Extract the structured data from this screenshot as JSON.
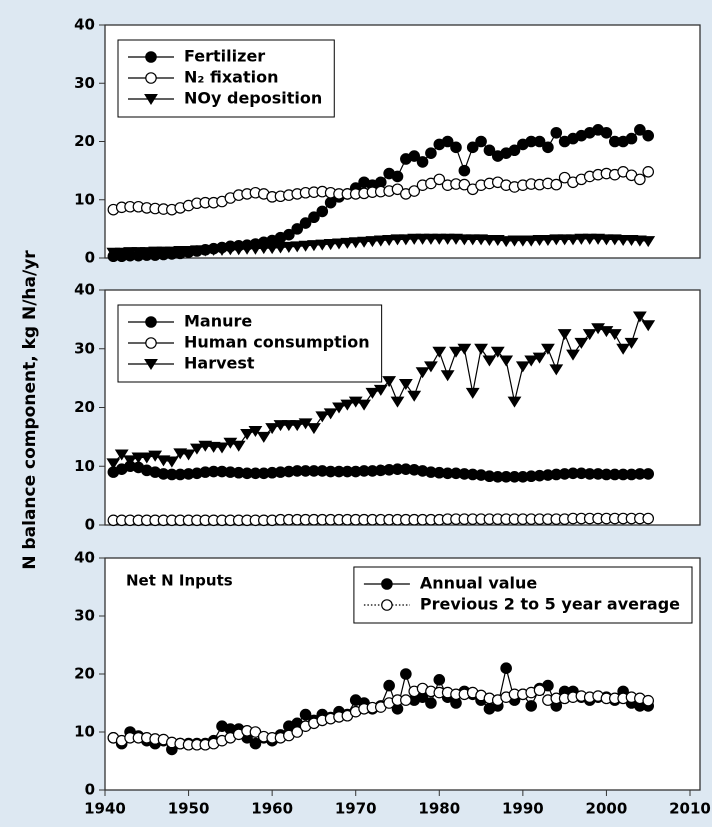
{
  "chart_data": [
    {
      "type": "line",
      "xlim": [
        1940,
        2010
      ],
      "ylim": [
        0,
        40
      ],
      "yticks": [
        0,
        10,
        20,
        30,
        40
      ],
      "legend": "upper left",
      "x": [
        1941,
        1942,
        1943,
        1944,
        1945,
        1946,
        1947,
        1948,
        1949,
        1950,
        1951,
        1952,
        1953,
        1954,
        1955,
        1956,
        1957,
        1958,
        1959,
        1960,
        1961,
        1962,
        1963,
        1964,
        1965,
        1966,
        1967,
        1968,
        1969,
        1970,
        1971,
        1972,
        1973,
        1974,
        1975,
        1976,
        1977,
        1978,
        1979,
        1980,
        1981,
        1982,
        1983,
        1984,
        1985,
        1986,
        1987,
        1988,
        1989,
        1990,
        1991,
        1992,
        1993,
        1994,
        1995,
        1996,
        1997,
        1998,
        1999,
        2000,
        2001,
        2002,
        2003,
        2004,
        2005
      ],
      "series": [
        {
          "name": "Fertilizer",
          "color": "#000000",
          "marker": "filled-circle",
          "line": "solid",
          "values": [
            0.3,
            0.3,
            0.4,
            0.4,
            0.5,
            0.5,
            0.6,
            0.7,
            0.8,
            1.0,
            1.2,
            1.4,
            1.6,
            1.8,
            2.0,
            2.1,
            2.2,
            2.4,
            2.7,
            3.0,
            3.5,
            4.0,
            5.0,
            6.0,
            7.0,
            8.0,
            9.5,
            10.5,
            11.0,
            12.0,
            13.0,
            12.5,
            13.0,
            14.5,
            14.0,
            17.0,
            17.5,
            16.5,
            18.0,
            19.5,
            20.0,
            19.0,
            15.0,
            19.0,
            20.0,
            18.5,
            17.5,
            18.0,
            18.5,
            19.5,
            20.0,
            20.0,
            19.0,
            21.5,
            20.0,
            20.5,
            21.0,
            21.5,
            22.0,
            21.5,
            20.0,
            20.0,
            20.5,
            22.0,
            21.0
          ]
        },
        {
          "name": "N₂ fixation",
          "color": "#000000",
          "marker": "open-circle",
          "line": "solid",
          "values": [
            8.3,
            8.7,
            8.8,
            8.8,
            8.6,
            8.5,
            8.4,
            8.3,
            8.6,
            9.0,
            9.4,
            9.5,
            9.5,
            9.7,
            10.3,
            10.8,
            11.0,
            11.2,
            11.0,
            10.5,
            10.6,
            10.8,
            11.0,
            11.2,
            11.3,
            11.4,
            11.2,
            11.0,
            11.0,
            11.0,
            11.1,
            11.3,
            11.4,
            11.5,
            11.8,
            11.0,
            11.5,
            12.5,
            12.8,
            13.5,
            12.5,
            12.7,
            12.6,
            11.8,
            12.5,
            12.8,
            13.0,
            12.5,
            12.2,
            12.5,
            12.7,
            12.6,
            12.8,
            12.6,
            13.8,
            13.0,
            13.5,
            14.0,
            14.3,
            14.5,
            14.3,
            14.8,
            14.2,
            13.5,
            14.8
          ]
        },
        {
          "name": "NOy deposition",
          "color": "#000000",
          "marker": "triangle-down",
          "line": "solid",
          "values": [
            0.9,
            0.9,
            1.0,
            1.0,
            1.0,
            1.1,
            1.1,
            1.1,
            1.2,
            1.2,
            1.3,
            1.3,
            1.4,
            1.4,
            1.5,
            1.5,
            1.6,
            1.6,
            1.7,
            1.7,
            1.8,
            1.9,
            2.0,
            2.1,
            2.2,
            2.3,
            2.4,
            2.5,
            2.6,
            2.7,
            2.8,
            2.9,
            3.0,
            3.1,
            3.2,
            3.2,
            3.3,
            3.3,
            3.3,
            3.3,
            3.3,
            3.3,
            3.2,
            3.2,
            3.2,
            3.1,
            3.1,
            2.9,
            3.0,
            3.0,
            3.0,
            3.1,
            3.1,
            3.2,
            3.2,
            3.2,
            3.3,
            3.3,
            3.3,
            3.2,
            3.2,
            3.1,
            3.1,
            3.0,
            2.9
          ]
        }
      ]
    },
    {
      "type": "line",
      "xlim": [
        1940,
        2010
      ],
      "ylim": [
        0,
        40
      ],
      "yticks": [
        0,
        10,
        20,
        30,
        40
      ],
      "legend": "upper left",
      "ylabel": "N balance component, kg N/ha/yr",
      "x": [
        1941,
        1942,
        1943,
        1944,
        1945,
        1946,
        1947,
        1948,
        1949,
        1950,
        1951,
        1952,
        1953,
        1954,
        1955,
        1956,
        1957,
        1958,
        1959,
        1960,
        1961,
        1962,
        1963,
        1964,
        1965,
        1966,
        1967,
        1968,
        1969,
        1970,
        1971,
        1972,
        1973,
        1974,
        1975,
        1976,
        1977,
        1978,
        1979,
        1980,
        1981,
        1982,
        1983,
        1984,
        1985,
        1986,
        1987,
        1988,
        1989,
        1990,
        1991,
        1992,
        1993,
        1994,
        1995,
        1996,
        1997,
        1998,
        1999,
        2000,
        2001,
        2002,
        2003,
        2004,
        2005
      ],
      "series": [
        {
          "name": "Manure",
          "color": "#000000",
          "marker": "filled-circle",
          "line": "solid",
          "values": [
            9.0,
            9.5,
            10.0,
            9.8,
            9.3,
            9.0,
            8.7,
            8.6,
            8.6,
            8.7,
            8.8,
            9.0,
            9.1,
            9.1,
            9.0,
            8.9,
            8.8,
            8.8,
            8.8,
            8.9,
            9.0,
            9.1,
            9.2,
            9.2,
            9.2,
            9.2,
            9.1,
            9.1,
            9.1,
            9.1,
            9.2,
            9.2,
            9.3,
            9.4,
            9.5,
            9.5,
            9.4,
            9.2,
            9.0,
            8.9,
            8.8,
            8.8,
            8.7,
            8.6,
            8.5,
            8.3,
            8.2,
            8.2,
            8.2,
            8.2,
            8.3,
            8.4,
            8.5,
            8.6,
            8.7,
            8.8,
            8.8,
            8.7,
            8.7,
            8.6,
            8.6,
            8.6,
            8.6,
            8.7,
            8.7
          ]
        },
        {
          "name": "Human consumption",
          "color": "#000000",
          "marker": "open-circle",
          "line": "solid",
          "values": [
            0.8,
            0.8,
            0.8,
            0.8,
            0.8,
            0.8,
            0.8,
            0.8,
            0.8,
            0.8,
            0.8,
            0.8,
            0.8,
            0.8,
            0.8,
            0.8,
            0.8,
            0.8,
            0.8,
            0.8,
            0.9,
            0.9,
            0.9,
            0.9,
            0.9,
            0.9,
            0.9,
            0.9,
            0.9,
            0.9,
            0.9,
            0.9,
            0.9,
            0.9,
            0.9,
            0.9,
            0.9,
            0.9,
            0.9,
            0.9,
            1.0,
            1.0,
            1.0,
            1.0,
            1.0,
            1.0,
            1.0,
            1.0,
            1.0,
            1.0,
            1.0,
            1.0,
            1.0,
            1.0,
            1.0,
            1.1,
            1.1,
            1.1,
            1.1,
            1.1,
            1.1,
            1.1,
            1.1,
            1.1,
            1.1
          ]
        },
        {
          "name": "Harvest",
          "color": "#000000",
          "marker": "triangle-down",
          "line": "solid",
          "values": [
            10.5,
            12.0,
            11.0,
            11.5,
            11.5,
            11.8,
            11.0,
            10.8,
            12.2,
            12.0,
            13.0,
            13.5,
            13.3,
            13.2,
            14.0,
            13.5,
            15.5,
            16.0,
            15.0,
            16.5,
            17.0,
            17.0,
            17.0,
            17.3,
            16.5,
            18.5,
            19.0,
            20.0,
            20.5,
            21.0,
            20.5,
            22.5,
            23.0,
            24.5,
            21.0,
            24.0,
            22.0,
            26.0,
            27.0,
            29.5,
            25.5,
            29.5,
            30.0,
            22.5,
            30.0,
            28.0,
            29.5,
            28.0,
            21.0,
            27.0,
            28.0,
            28.5,
            30.0,
            26.5,
            32.5,
            29.0,
            31.0,
            32.5,
            33.5,
            33.0,
            32.5,
            30.0,
            31.0,
            35.5,
            34.0
          ]
        }
      ]
    },
    {
      "type": "line",
      "xlim": [
        1940,
        2010
      ],
      "ylim": [
        0,
        40
      ],
      "yticks": [
        0,
        10,
        20,
        30,
        40
      ],
      "xticks": [
        1940,
        1950,
        1960,
        1970,
        1980,
        1990,
        2000,
        2010
      ],
      "legend": "upper right",
      "annotation": "Net N Inputs",
      "x": [
        1941,
        1942,
        1943,
        1944,
        1945,
        1946,
        1947,
        1948,
        1949,
        1950,
        1951,
        1952,
        1953,
        1954,
        1955,
        1956,
        1957,
        1958,
        1959,
        1960,
        1961,
        1962,
        1963,
        1964,
        1965,
        1966,
        1967,
        1968,
        1969,
        1970,
        1971,
        1972,
        1973,
        1974,
        1975,
        1976,
        1977,
        1978,
        1979,
        1980,
        1981,
        1982,
        1983,
        1984,
        1985,
        1986,
        1987,
        1988,
        1989,
        1990,
        1991,
        1992,
        1993,
        1994,
        1995,
        1996,
        1997,
        1998,
        1999,
        2000,
        2001,
        2002,
        2003,
        2004,
        2005
      ],
      "series": [
        {
          "name": "Annual value",
          "color": "#000000",
          "marker": "filled-circle",
          "line": "solid",
          "values": [
            9.0,
            8.0,
            10.0,
            9.3,
            8.5,
            8.0,
            8.5,
            7.0,
            8.0,
            8.0,
            8.0,
            8.0,
            8.5,
            11.0,
            10.5,
            10.5,
            9.0,
            8.0,
            9.0,
            8.5,
            9.5,
            11.0,
            11.5,
            13.0,
            12.0,
            13.0,
            12.5,
            13.5,
            13.0,
            15.5,
            15.0,
            14.0,
            14.5,
            18.0,
            14.0,
            20.0,
            15.5,
            16.0,
            15.0,
            19.0,
            16.0,
            15.0,
            17.0,
            16.5,
            15.5,
            14.0,
            14.5,
            21.0,
            15.5,
            16.5,
            14.5,
            17.5,
            18.0,
            14.5,
            17.0,
            17.0,
            16.0,
            15.5,
            16.0,
            16.0,
            15.5,
            17.0,
            15.0,
            14.5,
            14.5
          ]
        },
        {
          "name": "Previous 2 to 5 year average",
          "color": "#000000",
          "marker": "open-circle",
          "line": "dotted",
          "values": [
            9.0,
            8.5,
            9.0,
            9.0,
            9.0,
            8.8,
            8.7,
            8.2,
            8.0,
            7.8,
            7.8,
            7.8,
            8.0,
            8.5,
            9.0,
            9.6,
            10.2,
            10.0,
            9.2,
            9.0,
            9.0,
            9.4,
            10.0,
            11.0,
            11.5,
            12.0,
            12.3,
            12.6,
            12.8,
            13.5,
            14.0,
            14.2,
            14.3,
            15.0,
            15.5,
            15.5,
            17.0,
            17.5,
            17.0,
            16.8,
            16.8,
            16.5,
            16.5,
            16.8,
            16.3,
            15.8,
            15.5,
            16.0,
            16.5,
            16.5,
            16.8,
            17.2,
            15.5,
            15.8,
            15.8,
            16.0,
            16.2,
            16.0,
            16.2,
            15.8,
            15.8,
            15.8,
            16.0,
            15.8,
            15.4
          ]
        }
      ]
    }
  ]
}
